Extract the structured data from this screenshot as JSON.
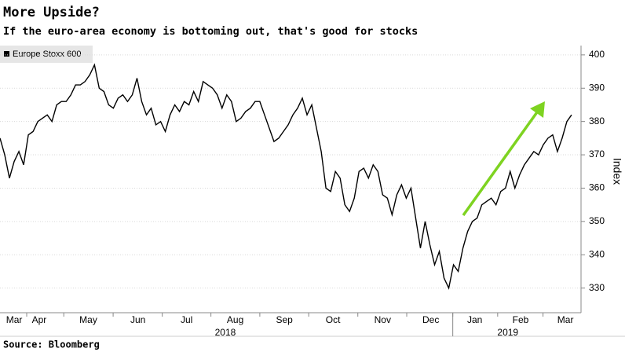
{
  "chart_data": {
    "type": "line",
    "title": "More Upside?",
    "subtitle": "If the euro-area economy is bottoming out, that's good for stocks",
    "source": "Source: Bloomberg",
    "y_axis_label": "Index",
    "series": [
      {
        "name": "Europe Stoxx 600",
        "color": "#000000",
        "values": [
          375,
          370,
          363,
          368,
          371,
          367,
          376,
          377,
          380,
          381,
          382,
          380,
          385,
          386,
          386,
          388,
          391,
          391,
          392,
          394,
          397,
          390,
          389,
          385,
          384,
          387,
          388,
          386,
          388,
          393,
          386,
          382,
          384,
          379,
          380,
          377,
          382,
          385,
          383,
          386,
          385,
          389,
          386,
          392,
          391,
          390,
          388,
          384,
          388,
          386,
          380,
          381,
          383,
          384,
          386,
          386,
          382,
          378,
          374,
          375,
          377,
          379,
          382,
          384,
          387,
          382,
          385,
          378,
          371,
          360,
          359,
          365,
          363,
          355,
          353,
          357,
          365,
          366,
          363,
          367,
          365,
          358,
          357,
          352,
          358,
          361,
          357,
          360,
          351,
          342,
          350,
          343,
          337,
          341,
          333,
          330,
          337,
          335,
          342,
          347,
          350,
          351,
          355,
          356,
          357,
          355,
          359,
          360,
          365,
          360,
          364,
          367,
          369,
          371,
          370,
          373,
          375,
          376,
          371,
          375,
          380,
          382
        ]
      }
    ],
    "xlim": [
      0,
      123
    ],
    "xticks": [
      {
        "value": 3,
        "label": "Mar"
      },
      {
        "value": 8.3,
        "label": "Apr"
      },
      {
        "value": 18.7,
        "label": "May"
      },
      {
        "value": 29.2,
        "label": "Jun"
      },
      {
        "value": 39.5,
        "label": "Jul"
      },
      {
        "value": 49.8,
        "label": "Aug"
      },
      {
        "value": 60.2,
        "label": "Sep"
      },
      {
        "value": 70.5,
        "label": "Oct"
      },
      {
        "value": 81,
        "label": "Nov"
      },
      {
        "value": 91.2,
        "label": "Dec"
      },
      {
        "value": 100.5,
        "label": "Jan"
      },
      {
        "value": 110.2,
        "label": "Feb"
      },
      {
        "value": 119.7,
        "label": "Mar"
      }
    ],
    "year_labels": [
      {
        "value": 47.7,
        "label": "2018"
      },
      {
        "value": 107.5,
        "label": "2019"
      }
    ],
    "ylim": [
      322.6,
      402.8
    ],
    "yticks": [
      330,
      340,
      350,
      360,
      370,
      380,
      390,
      400
    ],
    "grid": true
  }
}
